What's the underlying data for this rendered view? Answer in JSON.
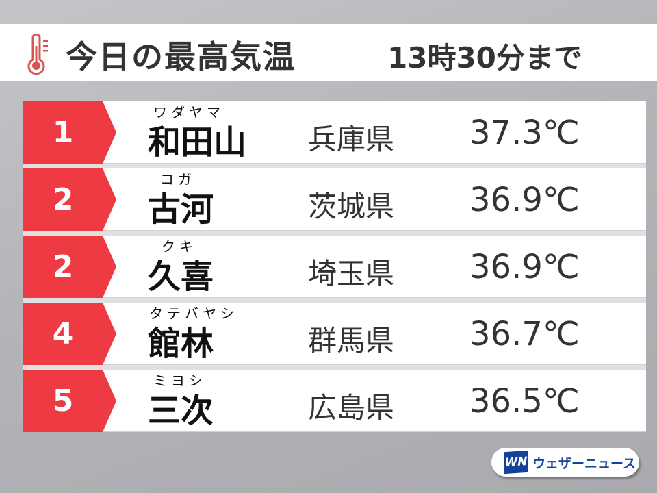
{
  "header": {
    "title": "今日の最高気温",
    "time": "13時30分まで",
    "icon": "thermometer-icon"
  },
  "colors": {
    "accent": "#ee3a43",
    "text": "#333333",
    "logo": "#12429a"
  },
  "rows": [
    {
      "rank": "1",
      "reading": "ワダヤマ",
      "city": "和田山",
      "prefecture": "兵庫県",
      "temp": "37.3℃"
    },
    {
      "rank": "2",
      "reading": "コガ",
      "city": "古河",
      "prefecture": "茨城県",
      "temp": "36.9℃"
    },
    {
      "rank": "2",
      "reading": "クキ",
      "city": "久喜",
      "prefecture": "埼玉県",
      "temp": "36.9℃"
    },
    {
      "rank": "4",
      "reading": "タテバヤシ",
      "city": "館林",
      "prefecture": "群馬県",
      "temp": "36.7℃"
    },
    {
      "rank": "5",
      "reading": "ミヨシ",
      "city": "三次",
      "prefecture": "広島県",
      "temp": "36.5℃"
    }
  ],
  "logo": {
    "mark": "WN",
    "text": "ウェザーニュース"
  }
}
